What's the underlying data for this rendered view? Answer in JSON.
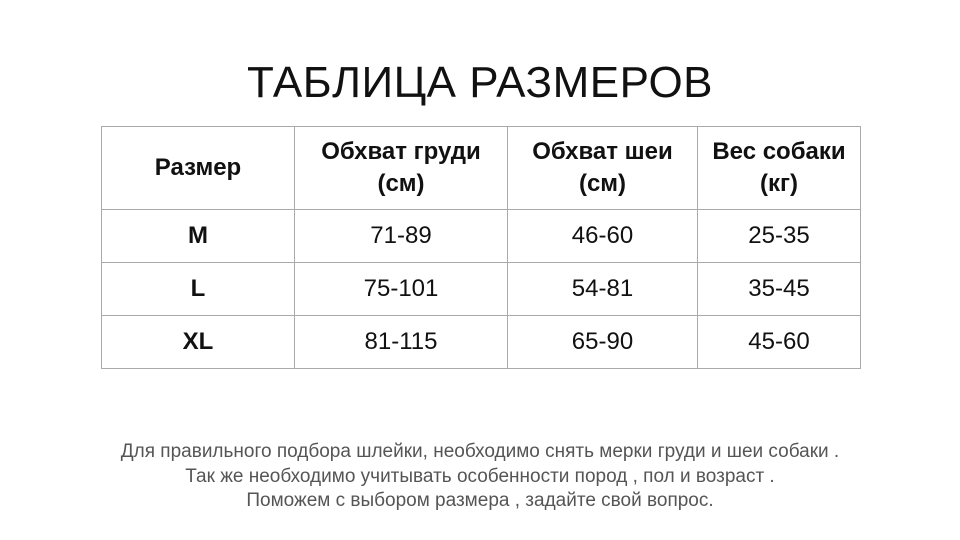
{
  "title": "ТАБЛИЦА РАЗМЕРОВ",
  "table": {
    "headers": [
      "Размер",
      "Обхват груди (см)",
      "Обхват шеи (см)",
      "Вес собаки (кг)"
    ],
    "rows": [
      [
        "M",
        "71-89",
        "46-60",
        "25-35"
      ],
      [
        "L",
        "75-101",
        "54-81",
        "35-45"
      ],
      [
        "XL",
        "81-115",
        "65-90",
        "45-60"
      ]
    ]
  },
  "notes": [
    "Для правильного подбора шлейки, необходимо снять мерки груди и шеи собаки .",
    "Так же необходимо учитывать особенности пород , пол и возраст .",
    "Поможем с выбором размера , задайте свой вопрос."
  ]
}
